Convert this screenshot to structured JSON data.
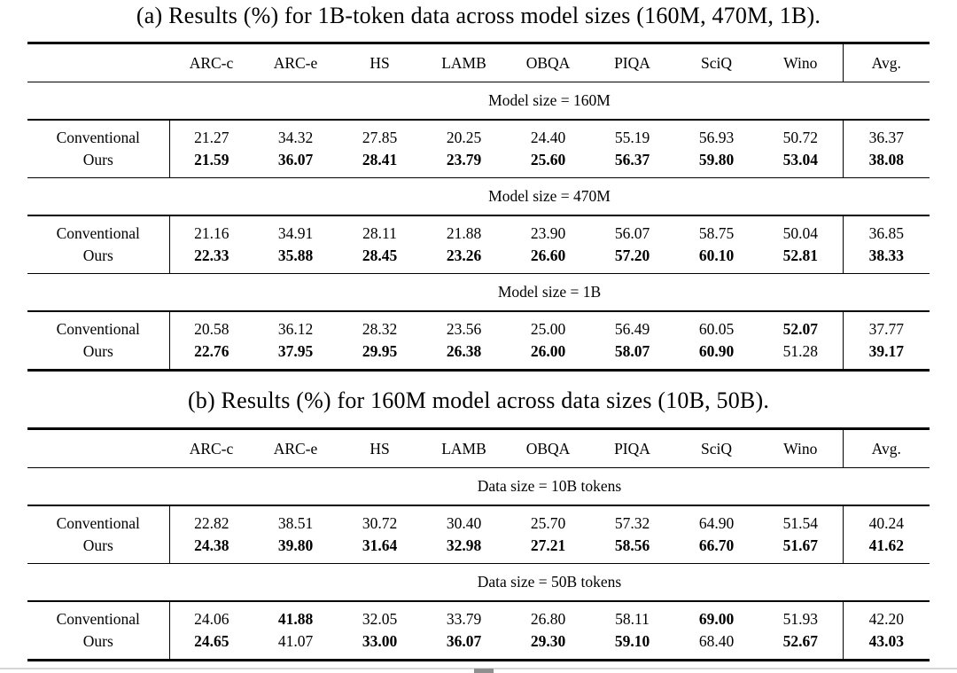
{
  "colors": {
    "rule": "#000000",
    "background": "#ffffff",
    "text": "#000000"
  },
  "tables": [
    {
      "id": "a",
      "title": "(a) Results (%) for 1B-token data across model sizes (160M, 470M, 1B).",
      "columns": [
        "ARC-c",
        "ARC-e",
        "HS",
        "LAMB",
        "OBQA",
        "PIQA",
        "SciQ",
        "Wino",
        "Avg."
      ],
      "sections": [
        {
          "label": "Model size = 160M",
          "rows": [
            {
              "name": "Conventional",
              "values": [
                "21.27",
                "34.32",
                "27.85",
                "20.25",
                "24.40",
                "55.19",
                "56.93",
                "50.72",
                "36.37"
              ],
              "bold": [
                false,
                false,
                false,
                false,
                false,
                false,
                false,
                false,
                false
              ]
            },
            {
              "name": "Ours",
              "values": [
                "21.59",
                "36.07",
                "28.41",
                "23.79",
                "25.60",
                "56.37",
                "59.80",
                "53.04",
                "38.08"
              ],
              "bold": [
                true,
                true,
                true,
                true,
                true,
                true,
                true,
                true,
                true
              ]
            }
          ]
        },
        {
          "label": "Model size = 470M",
          "rows": [
            {
              "name": "Conventional",
              "values": [
                "21.16",
                "34.91",
                "28.11",
                "21.88",
                "23.90",
                "56.07",
                "58.75",
                "50.04",
                "36.85"
              ],
              "bold": [
                false,
                false,
                false,
                false,
                false,
                false,
                false,
                false,
                false
              ]
            },
            {
              "name": "Ours",
              "values": [
                "22.33",
                "35.88",
                "28.45",
                "23.26",
                "26.60",
                "57.20",
                "60.10",
                "52.81",
                "38.33"
              ],
              "bold": [
                true,
                true,
                true,
                true,
                true,
                true,
                true,
                true,
                true
              ]
            }
          ]
        },
        {
          "label": "Model size = 1B",
          "rows": [
            {
              "name": "Conventional",
              "values": [
                "20.58",
                "36.12",
                "28.32",
                "23.56",
                "25.00",
                "56.49",
                "60.05",
                "52.07",
                "37.77"
              ],
              "bold": [
                false,
                false,
                false,
                false,
                false,
                false,
                false,
                true,
                false
              ]
            },
            {
              "name": "Ours",
              "values": [
                "22.76",
                "37.95",
                "29.95",
                "26.38",
                "26.00",
                "58.07",
                "60.90",
                "51.28",
                "39.17"
              ],
              "bold": [
                true,
                true,
                true,
                true,
                true,
                true,
                true,
                false,
                true
              ]
            }
          ]
        }
      ]
    },
    {
      "id": "b",
      "title": "(b) Results (%) for 160M model across data sizes (10B, 50B).",
      "columns": [
        "ARC-c",
        "ARC-e",
        "HS",
        "LAMB",
        "OBQA",
        "PIQA",
        "SciQ",
        "Wino",
        "Avg."
      ],
      "sections": [
        {
          "label": "Data size = 10B tokens",
          "rows": [
            {
              "name": "Conventional",
              "values": [
                "22.82",
                "38.51",
                "30.72",
                "30.40",
                "25.70",
                "57.32",
                "64.90",
                "51.54",
                "40.24"
              ],
              "bold": [
                false,
                false,
                false,
                false,
                false,
                false,
                false,
                false,
                false
              ]
            },
            {
              "name": "Ours",
              "values": [
                "24.38",
                "39.80",
                "31.64",
                "32.98",
                "27.21",
                "58.56",
                "66.70",
                "51.67",
                "41.62"
              ],
              "bold": [
                true,
                true,
                true,
                true,
                true,
                true,
                true,
                true,
                true
              ]
            }
          ]
        },
        {
          "label": "Data size = 50B tokens",
          "rows": [
            {
              "name": "Conventional",
              "values": [
                "24.06",
                "41.88",
                "32.05",
                "33.79",
                "26.80",
                "58.11",
                "69.00",
                "51.93",
                "42.20"
              ],
              "bold": [
                false,
                true,
                false,
                false,
                false,
                false,
                true,
                false,
                false
              ]
            },
            {
              "name": "Ours",
              "values": [
                "24.65",
                "41.07",
                "33.00",
                "36.07",
                "29.30",
                "59.10",
                "68.40",
                "52.67",
                "43.03"
              ],
              "bold": [
                true,
                false,
                true,
                true,
                true,
                true,
                false,
                true,
                true
              ]
            }
          ]
        }
      ]
    }
  ]
}
